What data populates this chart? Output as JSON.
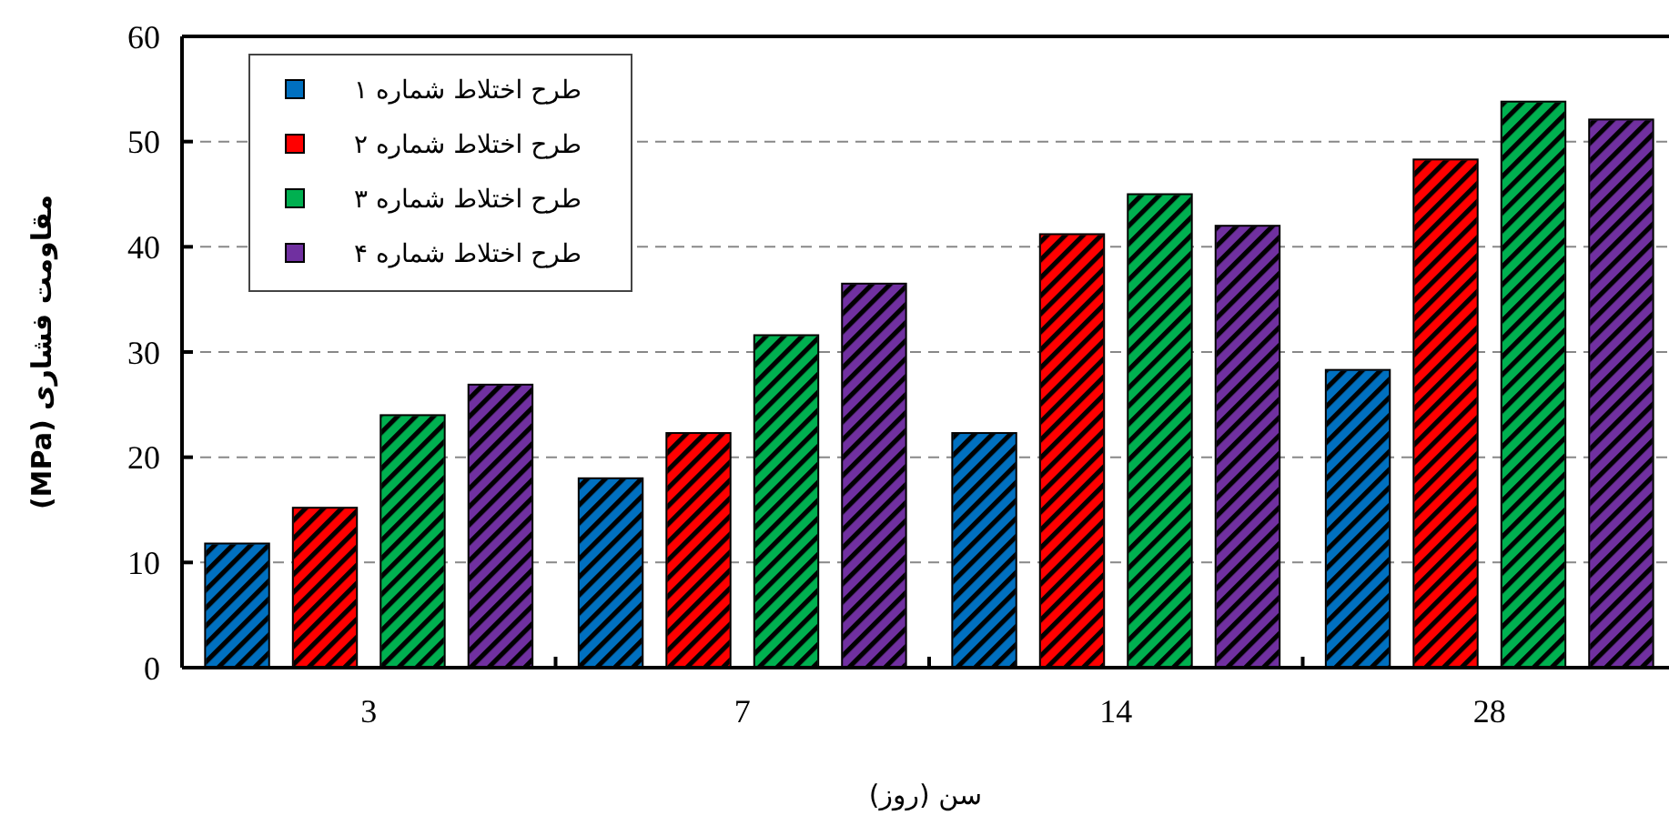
{
  "chart_data": {
    "type": "bar",
    "xlabel": "سن (روز)",
    "ylabel": "مقاومت فشاری (MPa)",
    "categories": [
      "3",
      "7",
      "14",
      "28"
    ],
    "series": [
      {
        "name": "طرح اختلاط شماره ۱",
        "color": "#0070c0",
        "values": [
          11.8,
          18.0,
          22.3,
          28.3
        ]
      },
      {
        "name": "طرح اختلاط شماره ۲",
        "color": "#ff0000",
        "values": [
          15.2,
          22.3,
          41.2,
          48.3
        ]
      },
      {
        "name": "طرح اختلاط شماره ۳",
        "color": "#00b050",
        "values": [
          24.0,
          31.6,
          45.0,
          53.8
        ]
      },
      {
        "name": "طرح اختلاط شماره ۴",
        "color": "#7030a0",
        "values": [
          26.9,
          36.5,
          42.0,
          52.1
        ]
      }
    ],
    "ylim": [
      0,
      60
    ],
    "yticks": [
      0,
      10,
      20,
      30,
      40,
      50,
      60
    ],
    "grid": "y",
    "legend": "top left"
  }
}
